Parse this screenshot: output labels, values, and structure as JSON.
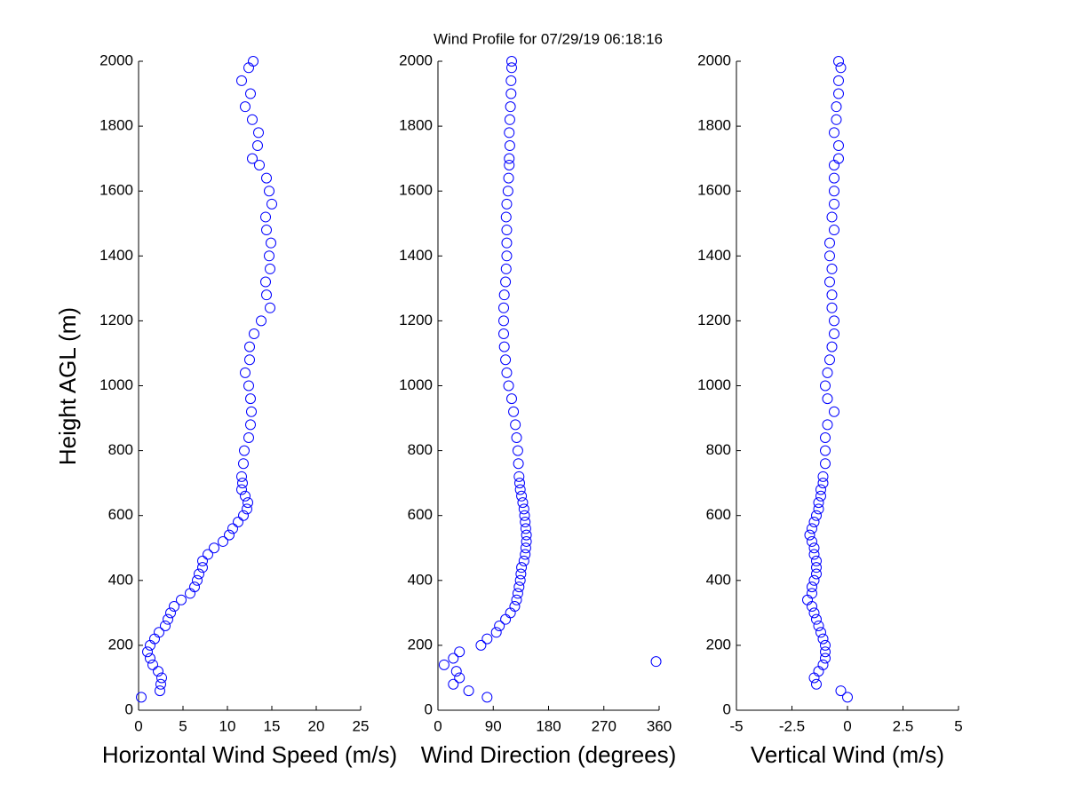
{
  "chart_data": [
    {
      "type": "scatter",
      "title": "Wind Profile for  07/29/19 06:18:16",
      "xlabel": "Horizontal Wind Speed (m/s)",
      "ylabel": "Height AGL (m)",
      "color": "#0000ff",
      "xlim": [
        0,
        25
      ],
      "xticks": [
        0,
        5,
        10,
        15,
        20,
        25
      ],
      "ylim": [
        0,
        2000
      ],
      "yticks": [
        0,
        200,
        400,
        600,
        800,
        1000,
        1200,
        1400,
        1600,
        1800,
        2000
      ],
      "x": [
        0.3,
        2.4,
        2.5,
        2.6,
        2.2,
        1.6,
        1.3,
        1.0,
        1.3,
        1.8,
        2.3,
        3.0,
        3.3,
        3.6,
        4.0,
        4.8,
        5.8,
        6.3,
        6.6,
        6.8,
        7.2,
        7.2,
        7.8,
        8.5,
        9.5,
        10.2,
        10.6,
        11.2,
        11.8,
        12.2,
        12.3,
        12.0,
        11.6,
        11.7,
        11.6,
        11.8,
        11.9,
        12.4,
        12.6,
        12.7,
        12.6,
        12.4,
        12.0,
        12.5,
        12.5,
        13.0,
        13.8,
        14.8,
        14.4,
        14.3,
        14.8,
        14.7,
        14.9,
        14.4,
        14.3,
        15.0,
        14.7,
        14.4,
        13.6,
        12.8,
        13.4,
        13.5,
        12.8,
        12.0,
        12.6,
        11.6,
        12.4,
        12.9
      ],
      "y": [
        40,
        60,
        80,
        100,
        120,
        140,
        160,
        180,
        200,
        220,
        240,
        260,
        280,
        300,
        320,
        340,
        360,
        380,
        400,
        420,
        440,
        460,
        480,
        500,
        520,
        540,
        560,
        580,
        600,
        620,
        640,
        660,
        680,
        700,
        720,
        760,
        800,
        840,
        880,
        920,
        960,
        1000,
        1040,
        1080,
        1120,
        1160,
        1200,
        1240,
        1280,
        1320,
        1360,
        1400,
        1440,
        1480,
        1520,
        1560,
        1600,
        1640,
        1680,
        1700,
        1740,
        1780,
        1820,
        1860,
        1900,
        1940,
        1980,
        2000
      ]
    },
    {
      "type": "scatter",
      "xlabel": "Wind Direction (degrees)",
      "color": "#0000ff",
      "xlim": [
        0,
        360
      ],
      "xticks": [
        0,
        90,
        180,
        270,
        360
      ],
      "ylim": [
        0,
        2000
      ],
      "yticks": [
        0,
        200,
        400,
        600,
        800,
        1000,
        1200,
        1400,
        1600,
        1800,
        2000
      ],
      "x": [
        80,
        50,
        25,
        35,
        30,
        10,
        25,
        35,
        70,
        80,
        95,
        100,
        110,
        118,
        125,
        128,
        130,
        132,
        134,
        135,
        136,
        140,
        142,
        143,
        144,
        144,
        143,
        142,
        141,
        140,
        138,
        136,
        134,
        133,
        132,
        131,
        130,
        128,
        126,
        123,
        120,
        115,
        112,
        110,
        108,
        107,
        107,
        107,
        108,
        110,
        111,
        112,
        112,
        112,
        111,
        112,
        114,
        115,
        116,
        116,
        117,
        116,
        117,
        118,
        119,
        119,
        120,
        120,
        355
      ],
      "y": [
        40,
        60,
        80,
        100,
        120,
        140,
        160,
        180,
        200,
        220,
        240,
        260,
        280,
        300,
        320,
        340,
        360,
        380,
        400,
        420,
        440,
        460,
        480,
        500,
        520,
        540,
        560,
        580,
        600,
        620,
        640,
        660,
        680,
        700,
        720,
        760,
        800,
        840,
        880,
        920,
        960,
        1000,
        1040,
        1080,
        1120,
        1160,
        1200,
        1240,
        1280,
        1320,
        1360,
        1400,
        1440,
        1480,
        1520,
        1560,
        1600,
        1640,
        1680,
        1700,
        1740,
        1780,
        1820,
        1860,
        1900,
        1940,
        1980,
        2000,
        150
      ]
    },
    {
      "type": "scatter",
      "xlabel": "Vertical Wind (m/s)",
      "color": "#0000ff",
      "xlim": [
        -5,
        5
      ],
      "xticks": [
        -5,
        -2.5,
        0,
        2.5,
        5
      ],
      "ylim": [
        0,
        2000
      ],
      "yticks": [
        0,
        200,
        400,
        600,
        800,
        1000,
        1200,
        1400,
        1600,
        1800,
        2000
      ],
      "x": [
        0.0,
        -0.3,
        -1.4,
        -1.5,
        -1.3,
        -1.1,
        -1.0,
        -1.0,
        -1.0,
        -1.1,
        -1.2,
        -1.3,
        -1.4,
        -1.5,
        -1.6,
        -1.8,
        -1.6,
        -1.6,
        -1.5,
        -1.4,
        -1.4,
        -1.4,
        -1.5,
        -1.5,
        -1.6,
        -1.7,
        -1.6,
        -1.5,
        -1.4,
        -1.3,
        -1.3,
        -1.2,
        -1.2,
        -1.1,
        -1.1,
        -1.0,
        -1.0,
        -1.0,
        -0.9,
        -0.6,
        -0.9,
        -1.0,
        -0.9,
        -0.8,
        -0.7,
        -0.6,
        -0.6,
        -0.7,
        -0.7,
        -0.8,
        -0.7,
        -0.8,
        -0.8,
        -0.6,
        -0.7,
        -0.6,
        -0.6,
        -0.6,
        -0.6,
        -0.4,
        -0.4,
        -0.6,
        -0.5,
        -0.5,
        -0.4,
        -0.4,
        -0.3,
        -0.4
      ],
      "y": [
        40,
        60,
        80,
        100,
        120,
        140,
        160,
        180,
        200,
        220,
        240,
        260,
        280,
        300,
        320,
        340,
        360,
        380,
        400,
        420,
        440,
        460,
        480,
        500,
        520,
        540,
        560,
        580,
        600,
        620,
        640,
        660,
        680,
        700,
        720,
        760,
        800,
        840,
        880,
        920,
        960,
        1000,
        1040,
        1080,
        1120,
        1160,
        1200,
        1240,
        1280,
        1320,
        1360,
        1400,
        1440,
        1480,
        1520,
        1560,
        1600,
        1640,
        1680,
        1700,
        1740,
        1780,
        1820,
        1860,
        1900,
        1940,
        1980,
        2000
      ]
    }
  ]
}
